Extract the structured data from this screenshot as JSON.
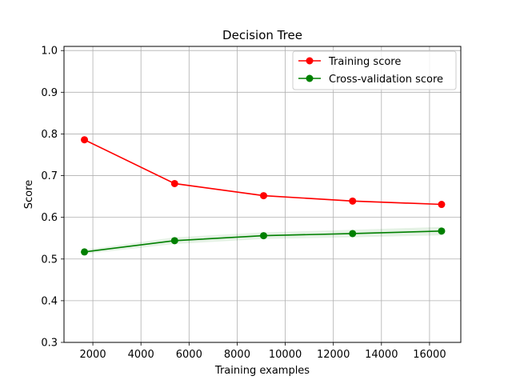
{
  "chart_data": {
    "type": "line",
    "title": "Decision Tree",
    "xlabel": "Training examples",
    "ylabel": "Score",
    "xlim": [
      800,
      17300
    ],
    "ylim": [
      0.3,
      1.01
    ],
    "x_ticks": [
      2000,
      4000,
      6000,
      8000,
      10000,
      12000,
      14000,
      16000
    ],
    "y_ticks": [
      0.3,
      0.4,
      0.5,
      0.6,
      0.7,
      0.8,
      0.9,
      1.0
    ],
    "x_tick_labels": [
      "2000",
      "4000",
      "6000",
      "8000",
      "10000",
      "12000",
      "14000",
      "16000"
    ],
    "y_tick_labels": [
      "0.3",
      "0.4",
      "0.5",
      "0.6",
      "0.7",
      "0.8",
      "0.9",
      "1.0"
    ],
    "grid": true,
    "legend_position": "top-right",
    "x": [
      1650,
      5400,
      9100,
      12800,
      16500
    ],
    "series": [
      {
        "name": "Training score",
        "color": "#ff0000",
        "values": [
          0.786,
          0.681,
          0.652,
          0.639,
          0.631
        ],
        "band_lower": [
          0.784,
          0.679,
          0.65,
          0.637,
          0.629
        ],
        "band_upper": [
          0.788,
          0.683,
          0.654,
          0.641,
          0.633
        ]
      },
      {
        "name": "Cross-validation score",
        "color": "#008000",
        "values": [
          0.517,
          0.544,
          0.556,
          0.561,
          0.567
        ],
        "band_lower": [
          0.512,
          0.536,
          0.548,
          0.552,
          0.557
        ],
        "band_upper": [
          0.522,
          0.552,
          0.564,
          0.57,
          0.577
        ]
      }
    ]
  }
}
